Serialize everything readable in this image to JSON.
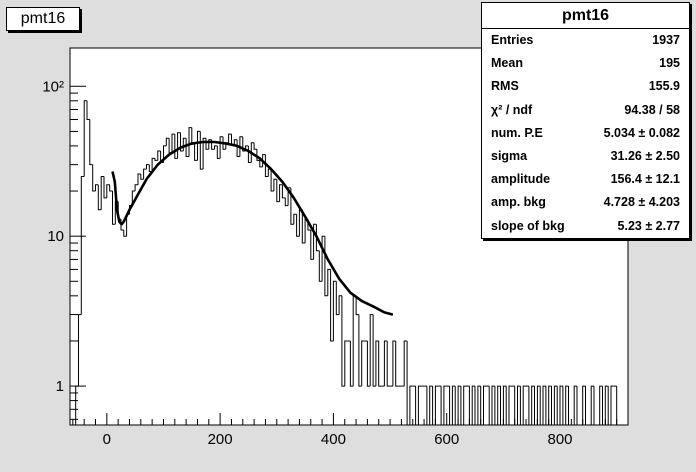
{
  "canvas_title": "pmt16",
  "stats_box": {
    "title": "pmt16",
    "rows": [
      {
        "label": "Entries",
        "value": "1937"
      },
      {
        "label": "Mean",
        "value": "195"
      },
      {
        "label": "RMS",
        "value": "155.9"
      },
      {
        "label": "χ² / ndf",
        "value": "94.38 / 58"
      },
      {
        "label": "num. P.E",
        "value": "5.034 ± 0.082"
      },
      {
        "label": "sigma",
        "value": "31.26 ± 2.50"
      },
      {
        "label": "amplitude",
        "value": "156.4 ± 12.1"
      },
      {
        "label": "amp. bkg",
        "value": "4.728 ± 4.203"
      },
      {
        "label": "slope of bkg",
        "value": "5.23 ± 2.77"
      }
    ]
  },
  "chart_data": {
    "type": "histogram",
    "title": "pmt16",
    "xlabel": "",
    "ylabel": "",
    "xlim": [
      -65,
      920
    ],
    "ylim": [
      0.55,
      180
    ],
    "y_log": true,
    "grid": false,
    "x_ticks": [
      0,
      200,
      400,
      600,
      800
    ],
    "x_tick_labels": [
      "0",
      "200",
      "400",
      "600",
      "800"
    ],
    "y_ticks": [
      1,
      10,
      100
    ],
    "y_tick_labels": [
      "1",
      "10",
      "10²"
    ],
    "bin_width": 5,
    "bins": [
      [
        -65,
        0
      ],
      [
        -60,
        0
      ],
      [
        -55,
        1
      ],
      [
        -50,
        3
      ],
      [
        -45,
        25
      ],
      [
        -40,
        80
      ],
      [
        -35,
        60
      ],
      [
        -30,
        30
      ],
      [
        -25,
        20
      ],
      [
        -20,
        22
      ],
      [
        -15,
        15
      ],
      [
        -10,
        25
      ],
      [
        -5,
        18
      ],
      [
        0,
        22
      ],
      [
        5,
        20
      ],
      [
        10,
        12
      ],
      [
        15,
        17
      ],
      [
        20,
        13
      ],
      [
        25,
        11
      ],
      [
        30,
        10
      ],
      [
        35,
        14
      ],
      [
        40,
        16
      ],
      [
        45,
        20
      ],
      [
        50,
        22
      ],
      [
        55,
        26
      ],
      [
        60,
        24
      ],
      [
        65,
        28
      ],
      [
        70,
        30
      ],
      [
        75,
        27
      ],
      [
        80,
        33
      ],
      [
        85,
        32
      ],
      [
        90,
        37
      ],
      [
        95,
        31
      ],
      [
        100,
        40
      ],
      [
        105,
        45
      ],
      [
        110,
        36
      ],
      [
        115,
        48
      ],
      [
        120,
        33
      ],
      [
        125,
        49
      ],
      [
        130,
        37
      ],
      [
        135,
        45
      ],
      [
        140,
        34
      ],
      [
        145,
        53
      ],
      [
        150,
        41
      ],
      [
        155,
        32
      ],
      [
        160,
        50
      ],
      [
        165,
        28
      ],
      [
        170,
        45
      ],
      [
        175,
        38
      ],
      [
        180,
        44
      ],
      [
        185,
        38
      ],
      [
        190,
        40
      ],
      [
        195,
        33
      ],
      [
        200,
        46
      ],
      [
        205,
        38
      ],
      [
        210,
        42
      ],
      [
        215,
        48
      ],
      [
        220,
        41
      ],
      [
        225,
        44
      ],
      [
        230,
        34
      ],
      [
        235,
        46
      ],
      [
        240,
        37
      ],
      [
        245,
        40
      ],
      [
        250,
        31
      ],
      [
        255,
        42
      ],
      [
        260,
        38
      ],
      [
        265,
        32
      ],
      [
        270,
        29
      ],
      [
        275,
        35
      ],
      [
        280,
        25
      ],
      [
        285,
        28
      ],
      [
        290,
        20
      ],
      [
        295,
        24
      ],
      [
        300,
        17
      ],
      [
        305,
        22
      ],
      [
        310,
        18
      ],
      [
        315,
        16
      ],
      [
        320,
        21
      ],
      [
        325,
        12
      ],
      [
        330,
        14
      ],
      [
        335,
        10
      ],
      [
        340,
        15
      ],
      [
        345,
        9
      ],
      [
        350,
        13
      ],
      [
        355,
        11
      ],
      [
        360,
        7
      ],
      [
        365,
        12
      ],
      [
        370,
        8
      ],
      [
        375,
        5
      ],
      [
        380,
        10
      ],
      [
        385,
        4
      ],
      [
        390,
        6
      ],
      [
        395,
        2
      ],
      [
        400,
        5
      ],
      [
        405,
        3
      ],
      [
        410,
        4
      ],
      [
        415,
        1
      ],
      [
        420,
        2
      ],
      [
        425,
        2
      ],
      [
        430,
        1
      ],
      [
        435,
        4
      ],
      [
        440,
        3
      ],
      [
        445,
        1
      ],
      [
        450,
        2
      ],
      [
        455,
        2
      ],
      [
        460,
        1
      ],
      [
        465,
        3
      ],
      [
        470,
        1
      ],
      [
        475,
        2
      ],
      [
        480,
        1
      ],
      [
        485,
        1
      ],
      [
        490,
        2
      ],
      [
        495,
        1
      ],
      [
        500,
        1
      ],
      [
        505,
        2
      ],
      [
        510,
        1
      ],
      [
        515,
        1
      ],
      [
        520,
        1
      ],
      [
        525,
        2
      ],
      [
        530,
        0
      ],
      [
        535,
        1
      ],
      [
        540,
        1
      ],
      [
        545,
        0
      ],
      [
        550,
        1
      ],
      [
        555,
        1
      ],
      [
        560,
        1
      ],
      [
        565,
        0
      ],
      [
        570,
        1
      ],
      [
        575,
        0
      ],
      [
        580,
        1
      ],
      [
        585,
        1
      ],
      [
        590,
        0
      ],
      [
        595,
        1
      ],
      [
        600,
        1
      ],
      [
        605,
        0
      ],
      [
        610,
        1
      ],
      [
        615,
        0
      ],
      [
        620,
        1
      ],
      [
        625,
        0
      ],
      [
        630,
        1
      ],
      [
        635,
        1
      ],
      [
        640,
        0
      ],
      [
        645,
        1
      ],
      [
        650,
        0
      ],
      [
        655,
        1
      ],
      [
        660,
        0
      ],
      [
        665,
        1
      ],
      [
        670,
        1
      ],
      [
        675,
        0
      ],
      [
        680,
        1
      ],
      [
        685,
        0
      ],
      [
        690,
        1
      ],
      [
        695,
        0
      ],
      [
        700,
        1
      ],
      [
        705,
        0
      ],
      [
        710,
        1
      ],
      [
        715,
        1
      ],
      [
        720,
        0
      ],
      [
        725,
        1
      ],
      [
        730,
        0
      ],
      [
        735,
        1
      ],
      [
        740,
        1
      ],
      [
        745,
        0
      ],
      [
        750,
        1
      ],
      [
        755,
        0
      ],
      [
        760,
        1
      ],
      [
        765,
        0
      ],
      [
        770,
        1
      ],
      [
        775,
        0
      ],
      [
        780,
        1
      ],
      [
        785,
        0
      ],
      [
        790,
        1
      ],
      [
        795,
        0
      ],
      [
        800,
        1
      ],
      [
        805,
        0
      ],
      [
        810,
        1
      ],
      [
        815,
        0
      ],
      [
        820,
        0
      ],
      [
        825,
        1
      ],
      [
        830,
        0
      ],
      [
        835,
        0
      ],
      [
        840,
        1
      ],
      [
        845,
        0
      ],
      [
        850,
        0
      ],
      [
        855,
        1
      ],
      [
        860,
        0
      ],
      [
        865,
        0
      ],
      [
        870,
        1
      ],
      [
        875,
        0
      ],
      [
        880,
        1
      ],
      [
        885,
        0
      ],
      [
        890,
        1
      ],
      [
        895,
        1
      ],
      [
        900,
        0
      ],
      [
        905,
        0
      ],
      [
        910,
        0
      ],
      [
        915,
        0
      ]
    ],
    "fit_curve": [
      [
        10,
        27
      ],
      [
        14,
        23
      ],
      [
        18,
        15
      ],
      [
        22,
        12.5
      ],
      [
        26,
        12
      ],
      [
        30,
        12.5
      ],
      [
        40,
        15
      ],
      [
        55,
        19
      ],
      [
        70,
        24
      ],
      [
        90,
        30
      ],
      [
        110,
        35
      ],
      [
        130,
        39
      ],
      [
        150,
        41.5
      ],
      [
        170,
        42.5
      ],
      [
        190,
        42.5
      ],
      [
        210,
        41.5
      ],
      [
        230,
        40
      ],
      [
        250,
        37
      ],
      [
        270,
        33
      ],
      [
        290,
        28
      ],
      [
        310,
        23
      ],
      [
        330,
        18
      ],
      [
        350,
        13.5
      ],
      [
        370,
        10
      ],
      [
        390,
        7
      ],
      [
        410,
        5.2
      ],
      [
        430,
        4.2
      ],
      [
        450,
        3.7
      ],
      [
        470,
        3.4
      ],
      [
        490,
        3.1
      ],
      [
        505,
        3
      ]
    ]
  }
}
